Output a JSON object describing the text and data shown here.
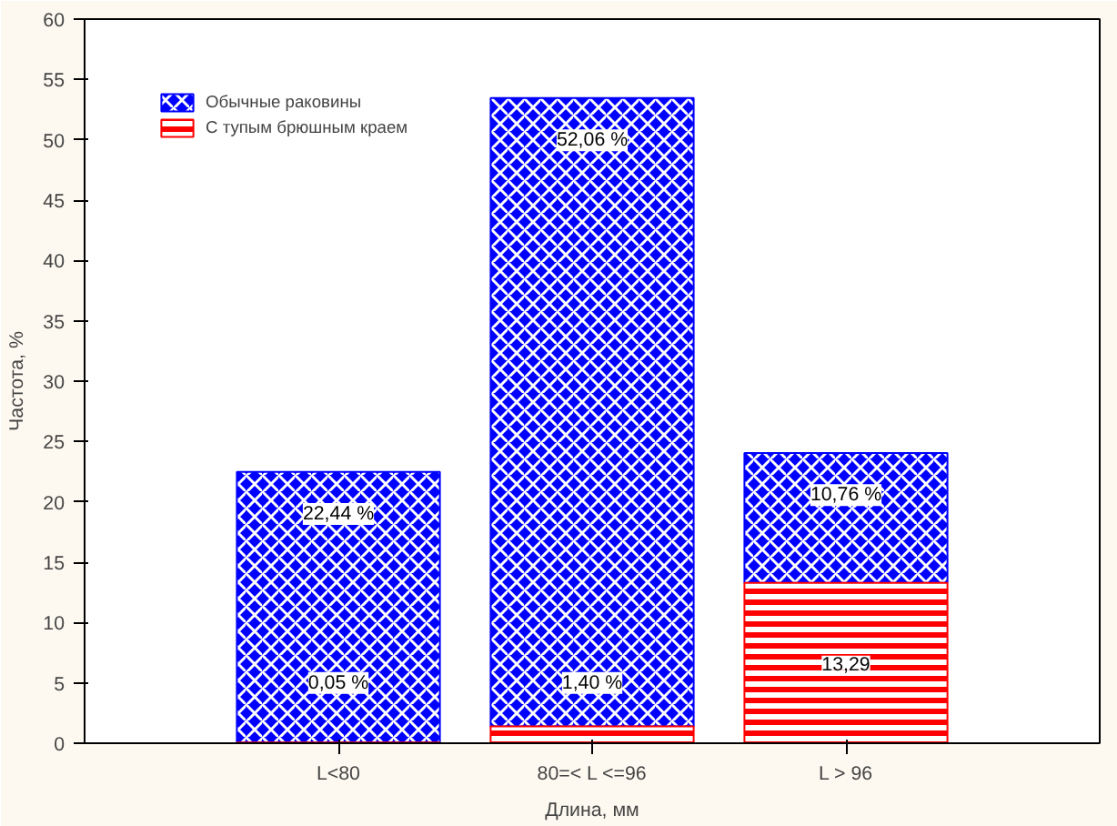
{
  "chart_data": {
    "type": "bar",
    "stacked": true,
    "xlabel": "Длина, мм",
    "ylabel": "Частота, %",
    "categories": [
      "L<80",
      "80=< L <=96",
      "L > 96"
    ],
    "series": [
      {
        "name": "С тупым брюшным краем",
        "color": "#ff0000",
        "values": [
          0.05,
          1.4,
          13.29
        ],
        "value_labels": [
          "0,05 %",
          "1,40 %",
          "13,29"
        ]
      },
      {
        "name": "Обычные раковины",
        "color": "#0000ff",
        "values": [
          22.44,
          52.06,
          10.76
        ],
        "value_labels": [
          "22,44 %",
          "52,06 %",
          "10,76 %"
        ]
      }
    ],
    "ylim": [
      0,
      60
    ],
    "yticks": [
      0,
      5,
      10,
      15,
      20,
      25,
      30,
      35,
      40,
      45,
      50,
      55,
      60
    ],
    "grid": false,
    "legend": "top left"
  }
}
